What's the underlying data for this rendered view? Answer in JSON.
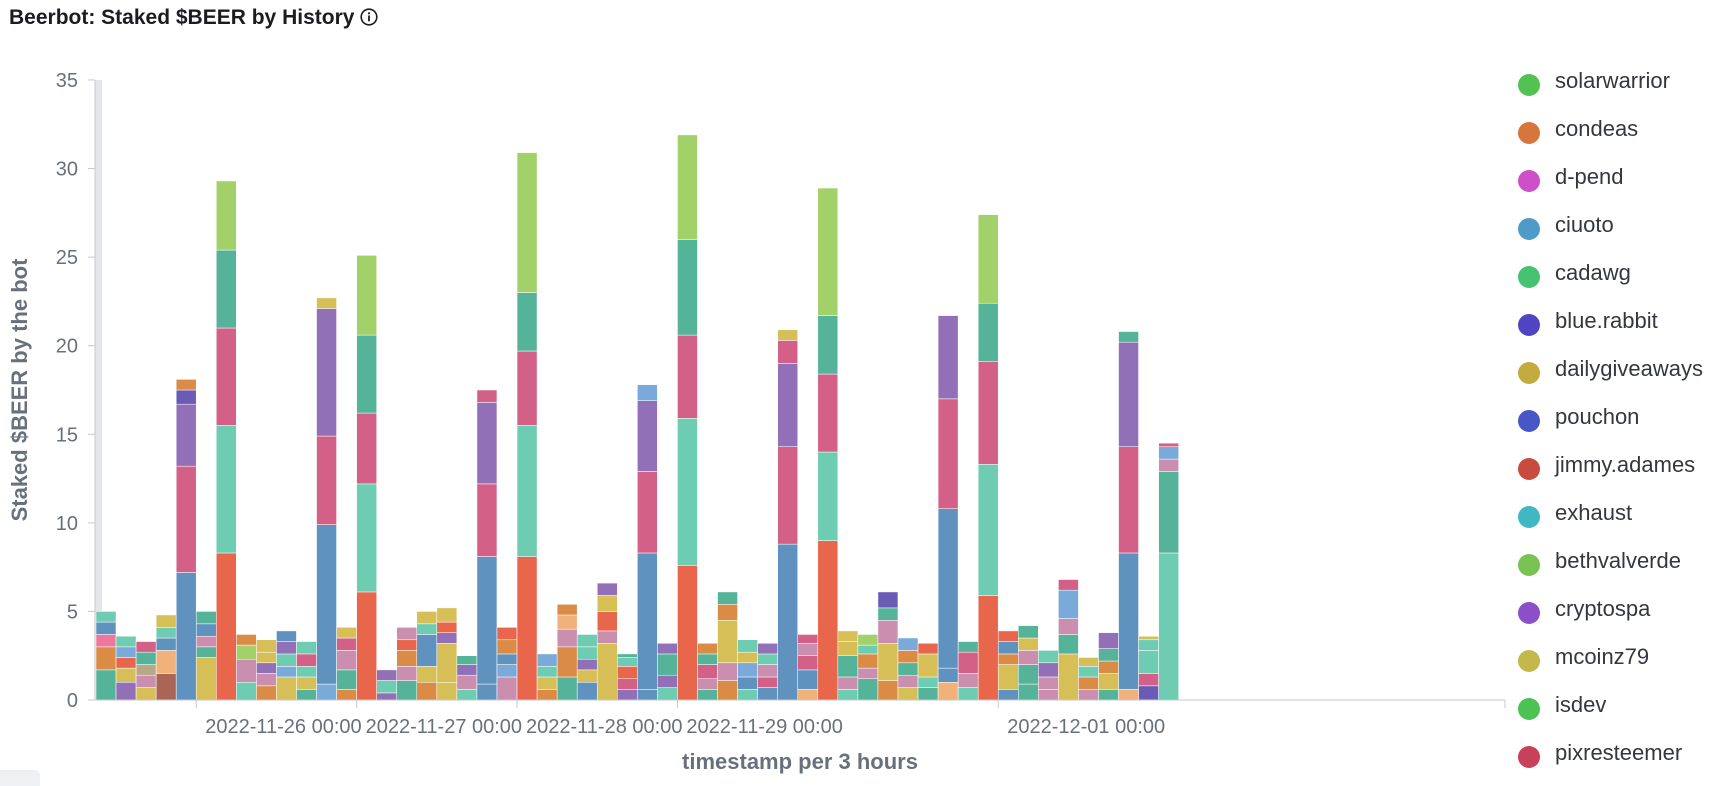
{
  "chart_data": {
    "type": "bar",
    "stacked": true,
    "title": "Beerbot: Staked $BEER by History",
    "xlabel": "timestamp per 3 hours",
    "ylabel": "Staked $BEER by the bot",
    "ylim": [
      0,
      35
    ],
    "yticks": [
      0,
      5,
      10,
      15,
      20,
      25,
      30,
      35
    ],
    "xticks": [
      {
        "label": "2022-11-26 00:00",
        "index": 5
      },
      {
        "label": "2022-11-27 00:00",
        "index": 13
      },
      {
        "label": "2022-11-28 00:00",
        "index": 21
      },
      {
        "label": "2022-11-29 00:00",
        "index": 29
      },
      {
        "label": "2022-12-01 00:00",
        "index": 45
      }
    ],
    "legend_position": "right",
    "series": [
      {
        "name": "solarwarrior",
        "color": "#54b399"
      },
      {
        "name": "condeas",
        "color": "#d6bf57"
      },
      {
        "name": "d-pend",
        "color": "#ca8eae"
      },
      {
        "name": "ciuoto",
        "color": "#6092c0"
      },
      {
        "name": "cadawg",
        "color": "#d36086"
      },
      {
        "name": "blue.rabbit",
        "color": "#9170b8"
      },
      {
        "name": "dailygiveaways",
        "color": "#da8b45"
      },
      {
        "name": "pouchon",
        "color": "#aa6556"
      },
      {
        "name": "jimmy.adames",
        "color": "#e7664c"
      },
      {
        "name": "exhaust",
        "color": "#b9a888"
      },
      {
        "name": "bethvalverde",
        "color": "#6dccb1"
      },
      {
        "name": "cryptospa",
        "color": "#79aad9"
      },
      {
        "name": "mcoinz79",
        "color": "#ee789d"
      },
      {
        "name": "isdev",
        "color": "#a987d1"
      },
      {
        "name": "pixresteemer",
        "color": "#e4a6c7"
      }
    ],
    "bars": [
      [
        {
          "v": 1.7,
          "c": "#54b399"
        },
        {
          "v": 1.3,
          "c": "#da8b45"
        },
        {
          "v": 0.7,
          "c": "#ee789d"
        },
        {
          "v": 0.7,
          "c": "#6092c0"
        },
        {
          "v": 0.6,
          "c": "#6dccb1"
        }
      ],
      [
        {
          "v": 1.0,
          "c": "#9170b8"
        },
        {
          "v": 0.8,
          "c": "#d6bf57"
        },
        {
          "v": 0.6,
          "c": "#e7664c"
        },
        {
          "v": 0.6,
          "c": "#79aad9"
        },
        {
          "v": 0.6,
          "c": "#6dccb1"
        }
      ],
      [
        {
          "v": 0.7,
          "c": "#d6bf57"
        },
        {
          "v": 0.7,
          "c": "#ca8eae"
        },
        {
          "v": 0.6,
          "c": "#b9a888"
        },
        {
          "v": 0.7,
          "c": "#54b399"
        },
        {
          "v": 0.6,
          "c": "#d36086"
        }
      ],
      [
        {
          "v": 1.5,
          "c": "#aa6556"
        },
        {
          "v": 1.3,
          "c": "#f0b27a"
        },
        {
          "v": 0.7,
          "c": "#6092c0"
        },
        {
          "v": 0.6,
          "c": "#6dccb1"
        },
        {
          "v": 0.7,
          "c": "#d6bf57"
        }
      ],
      [
        {
          "v": 7.2,
          "c": "#6092c0"
        },
        {
          "v": 6.0,
          "c": "#d36086"
        },
        {
          "v": 3.5,
          "c": "#9170b8"
        },
        {
          "v": 0.8,
          "c": "#6b5bb5"
        },
        {
          "v": 0.6,
          "c": "#da8b45"
        }
      ],
      [
        {
          "v": 2.4,
          "c": "#d6bf57"
        },
        {
          "v": 0.6,
          "c": "#54b399"
        },
        {
          "v": 0.6,
          "c": "#ca8eae"
        },
        {
          "v": 0.7,
          "c": "#6092c0"
        },
        {
          "v": 0.7,
          "c": "#54b399"
        }
      ],
      [
        {
          "v": 8.3,
          "c": "#e7664c"
        },
        {
          "v": 7.2,
          "c": "#6dccb1"
        },
        {
          "v": 5.5,
          "c": "#d36086"
        },
        {
          "v": 4.4,
          "c": "#54b399"
        },
        {
          "v": 3.9,
          "c": "#a2d16a"
        }
      ],
      [
        {
          "v": 1.0,
          "c": "#6dccb1"
        },
        {
          "v": 1.3,
          "c": "#ca8eae"
        },
        {
          "v": 0.8,
          "c": "#a2d16a"
        },
        {
          "v": 0.6,
          "c": "#da8b45"
        }
      ],
      [
        {
          "v": 0.8,
          "c": "#da8b45"
        },
        {
          "v": 0.7,
          "c": "#ca8eae"
        },
        {
          "v": 0.6,
          "c": "#9170b8"
        },
        {
          "v": 0.6,
          "c": "#d6bf57"
        },
        {
          "v": 0.7,
          "c": "#d6bf57"
        }
      ],
      [
        {
          "v": 1.3,
          "c": "#d6bf57"
        },
        {
          "v": 0.6,
          "c": "#79aad9"
        },
        {
          "v": 0.7,
          "c": "#6dccb1"
        },
        {
          "v": 0.7,
          "c": "#9170b8"
        },
        {
          "v": 0.6,
          "c": "#6092c0"
        }
      ],
      [
        {
          "v": 0.6,
          "c": "#54b399"
        },
        {
          "v": 0.7,
          "c": "#d6bf57"
        },
        {
          "v": 0.6,
          "c": "#6dccb1"
        },
        {
          "v": 0.7,
          "c": "#d36086"
        },
        {
          "v": 0.7,
          "c": "#6dccb1"
        }
      ],
      [
        {
          "v": 0.9,
          "c": "#79aad9"
        },
        {
          "v": 9.0,
          "c": "#6092c0"
        },
        {
          "v": 5.0,
          "c": "#d36086"
        },
        {
          "v": 7.2,
          "c": "#9170b8"
        },
        {
          "v": 0.6,
          "c": "#d6bf57"
        }
      ],
      [
        {
          "v": 0.6,
          "c": "#da8b45"
        },
        {
          "v": 1.1,
          "c": "#54b399"
        },
        {
          "v": 1.1,
          "c": "#ca8eae"
        },
        {
          "v": 0.7,
          "c": "#d36086"
        },
        {
          "v": 0.6,
          "c": "#d6bf57"
        }
      ],
      [
        {
          "v": 6.1,
          "c": "#e7664c"
        },
        {
          "v": 6.1,
          "c": "#6dccb1"
        },
        {
          "v": 4.0,
          "c": "#d36086"
        },
        {
          "v": 4.4,
          "c": "#54b399"
        },
        {
          "v": 4.5,
          "c": "#a2d16a"
        }
      ],
      [
        {
          "v": 0.4,
          "c": "#9170b8"
        },
        {
          "v": 0.7,
          "c": "#6dccb1"
        },
        {
          "v": 0.6,
          "c": "#9170b8"
        }
      ],
      [
        {
          "v": 1.1,
          "c": "#54b399"
        },
        {
          "v": 0.8,
          "c": "#ca8eae"
        },
        {
          "v": 0.9,
          "c": "#da8b45"
        },
        {
          "v": 0.6,
          "c": "#e7664c"
        },
        {
          "v": 0.7,
          "c": "#ca8eae"
        }
      ],
      [
        {
          "v": 1.0,
          "c": "#da8b45"
        },
        {
          "v": 0.9,
          "c": "#d6bf57"
        },
        {
          "v": 1.8,
          "c": "#6092c0"
        },
        {
          "v": 0.6,
          "c": "#6dccb1"
        },
        {
          "v": 0.7,
          "c": "#d6bf57"
        }
      ],
      [
        {
          "v": 1.0,
          "c": "#d6bf57"
        },
        {
          "v": 2.2,
          "c": "#d6bf57"
        },
        {
          "v": 0.6,
          "c": "#9170b8"
        },
        {
          "v": 0.6,
          "c": "#e7664c"
        },
        {
          "v": 0.8,
          "c": "#d6bf57"
        }
      ],
      [
        {
          "v": 0.6,
          "c": "#6dccb1"
        },
        {
          "v": 0.8,
          "c": "#ca8eae"
        },
        {
          "v": 0.6,
          "c": "#9170b8"
        },
        {
          "v": 0.5,
          "c": "#54b399"
        }
      ],
      [
        {
          "v": 0.9,
          "c": "#6092c0"
        },
        {
          "v": 7.2,
          "c": "#6092c0"
        },
        {
          "v": 4.1,
          "c": "#d36086"
        },
        {
          "v": 4.6,
          "c": "#9170b8"
        },
        {
          "v": 0.7,
          "c": "#d36086"
        }
      ],
      [
        {
          "v": 1.3,
          "c": "#ca8eae"
        },
        {
          "v": 0.7,
          "c": "#79aad9"
        },
        {
          "v": 0.6,
          "c": "#6092c0"
        },
        {
          "v": 0.8,
          "c": "#da8b45"
        },
        {
          "v": 0.7,
          "c": "#e7664c"
        }
      ],
      [
        {
          "v": 8.1,
          "c": "#e7664c"
        },
        {
          "v": 7.4,
          "c": "#6dccb1"
        },
        {
          "v": 4.2,
          "c": "#d36086"
        },
        {
          "v": 3.3,
          "c": "#54b399"
        },
        {
          "v": 7.9,
          "c": "#a2d16a"
        }
      ],
      [
        {
          "v": 0.6,
          "c": "#da8b45"
        },
        {
          "v": 0.7,
          "c": "#d6bf57"
        },
        {
          "v": 0.6,
          "c": "#6dccb1"
        },
        {
          "v": 0.7,
          "c": "#79aad9"
        }
      ],
      [
        {
          "v": 1.3,
          "c": "#54b399"
        },
        {
          "v": 1.7,
          "c": "#da8b45"
        },
        {
          "v": 1.0,
          "c": "#ca8eae"
        },
        {
          "v": 0.8,
          "c": "#f0b27a"
        },
        {
          "v": 0.6,
          "c": "#da8b45"
        }
      ],
      [
        {
          "v": 1.0,
          "c": "#6092c0"
        },
        {
          "v": 0.7,
          "c": "#d6bf57"
        },
        {
          "v": 0.6,
          "c": "#9170b8"
        },
        {
          "v": 0.7,
          "c": "#6dccb1"
        },
        {
          "v": 0.7,
          "c": "#6dccb1"
        }
      ],
      [
        {
          "v": 3.2,
          "c": "#d6bf57"
        },
        {
          "v": 0.7,
          "c": "#ca8eae"
        },
        {
          "v": 1.1,
          "c": "#e7664c"
        },
        {
          "v": 0.9,
          "c": "#d6bf57"
        },
        {
          "v": 0.7,
          "c": "#9170b8"
        }
      ],
      [
        {
          "v": 0.6,
          "c": "#9170b8"
        },
        {
          "v": 0.6,
          "c": "#d36086"
        },
        {
          "v": 0.7,
          "c": "#e7664c"
        },
        {
          "v": 0.5,
          "c": "#6dccb1"
        },
        {
          "v": 0.2,
          "c": "#54b399"
        }
      ],
      [
        {
          "v": 0.6,
          "c": "#6092c0"
        },
        {
          "v": 7.7,
          "c": "#6092c0"
        },
        {
          "v": 4.6,
          "c": "#d36086"
        },
        {
          "v": 4.0,
          "c": "#9170b8"
        },
        {
          "v": 0.9,
          "c": "#79aad9"
        }
      ],
      [
        {
          "v": 0.7,
          "c": "#6dccb1"
        },
        {
          "v": 0.7,
          "c": "#9170b8"
        },
        {
          "v": 1.2,
          "c": "#54b399"
        },
        {
          "v": 0.6,
          "c": "#9170b8"
        }
      ],
      [
        {
          "v": 7.6,
          "c": "#e7664c"
        },
        {
          "v": 8.3,
          "c": "#6dccb1"
        },
        {
          "v": 4.7,
          "c": "#d36086"
        },
        {
          "v": 5.4,
          "c": "#54b399"
        },
        {
          "v": 5.9,
          "c": "#a2d16a"
        }
      ],
      [
        {
          "v": 0.6,
          "c": "#54b399"
        },
        {
          "v": 0.6,
          "c": "#ca8eae"
        },
        {
          "v": 0.8,
          "c": "#d36086"
        },
        {
          "v": 0.6,
          "c": "#54b399"
        },
        {
          "v": 0.6,
          "c": "#da8b45"
        }
      ],
      [
        {
          "v": 1.1,
          "c": "#da8b45"
        },
        {
          "v": 1.0,
          "c": "#ca8eae"
        },
        {
          "v": 2.4,
          "c": "#d6bf57"
        },
        {
          "v": 0.9,
          "c": "#da8b45"
        },
        {
          "v": 0.7,
          "c": "#54b399"
        }
      ],
      [
        {
          "v": 0.6,
          "c": "#6dccb1"
        },
        {
          "v": 0.7,
          "c": "#6092c0"
        },
        {
          "v": 0.8,
          "c": "#79aad9"
        },
        {
          "v": 0.6,
          "c": "#d6bf57"
        },
        {
          "v": 0.7,
          "c": "#6dccb1"
        }
      ],
      [
        {
          "v": 0.7,
          "c": "#6092c0"
        },
        {
          "v": 0.6,
          "c": "#d36086"
        },
        {
          "v": 0.7,
          "c": "#ca8eae"
        },
        {
          "v": 0.6,
          "c": "#6dccb1"
        },
        {
          "v": 0.6,
          "c": "#9170b8"
        }
      ],
      [
        {
          "v": 8.8,
          "c": "#6092c0"
        },
        {
          "v": 5.5,
          "c": "#d36086"
        },
        {
          "v": 4.7,
          "c": "#9170b8"
        },
        {
          "v": 1.3,
          "c": "#d36086"
        },
        {
          "v": 0.6,
          "c": "#d6bf57"
        }
      ],
      [
        {
          "v": 0.6,
          "c": "#f0b27a"
        },
        {
          "v": 1.1,
          "c": "#6092c0"
        },
        {
          "v": 0.8,
          "c": "#d36086"
        },
        {
          "v": 0.7,
          "c": "#ca8eae"
        },
        {
          "v": 0.5,
          "c": "#d36086"
        }
      ],
      [
        {
          "v": 9.0,
          "c": "#e7664c"
        },
        {
          "v": 5.0,
          "c": "#6dccb1"
        },
        {
          "v": 4.4,
          "c": "#d36086"
        },
        {
          "v": 3.3,
          "c": "#54b399"
        },
        {
          "v": 7.2,
          "c": "#a2d16a"
        }
      ],
      [
        {
          "v": 0.6,
          "c": "#6dccb1"
        },
        {
          "v": 0.7,
          "c": "#ca8eae"
        },
        {
          "v": 1.2,
          "c": "#54b399"
        },
        {
          "v": 0.8,
          "c": "#d6bf57"
        },
        {
          "v": 0.6,
          "c": "#d6bf57"
        }
      ],
      [
        {
          "v": 1.2,
          "c": "#54b399"
        },
        {
          "v": 0.6,
          "c": "#ca8eae"
        },
        {
          "v": 0.8,
          "c": "#da8b45"
        },
        {
          "v": 0.5,
          "c": "#6dccb1"
        },
        {
          "v": 0.6,
          "c": "#a2d16a"
        }
      ],
      [
        {
          "v": 1.1,
          "c": "#da8b45"
        },
        {
          "v": 2.1,
          "c": "#d6bf57"
        },
        {
          "v": 1.3,
          "c": "#ca8eae"
        },
        {
          "v": 0.7,
          "c": "#54b399"
        },
        {
          "v": 0.9,
          "c": "#6b5bb5"
        }
      ],
      [
        {
          "v": 0.7,
          "c": "#d6bf57"
        },
        {
          "v": 0.7,
          "c": "#ca8eae"
        },
        {
          "v": 0.7,
          "c": "#54b399"
        },
        {
          "v": 0.7,
          "c": "#da8b45"
        },
        {
          "v": 0.7,
          "c": "#79aad9"
        }
      ],
      [
        {
          "v": 0.7,
          "c": "#54b399"
        },
        {
          "v": 0.6,
          "c": "#6dccb1"
        },
        {
          "v": 1.3,
          "c": "#d6bf57"
        },
        {
          "v": 0.6,
          "c": "#e7664c"
        }
      ],
      [
        {
          "v": 1.0,
          "c": "#f0b27a"
        },
        {
          "v": 0.8,
          "c": "#6092c0"
        },
        {
          "v": 9.0,
          "c": "#6092c0"
        },
        {
          "v": 6.2,
          "c": "#d36086"
        },
        {
          "v": 4.7,
          "c": "#9170b8"
        }
      ],
      [
        {
          "v": 0.7,
          "c": "#6dccb1"
        },
        {
          "v": 0.8,
          "c": "#ca8eae"
        },
        {
          "v": 1.2,
          "c": "#d36086"
        },
        {
          "v": 0.6,
          "c": "#54b399"
        }
      ],
      [
        {
          "v": 5.9,
          "c": "#e7664c"
        },
        {
          "v": 7.4,
          "c": "#6dccb1"
        },
        {
          "v": 5.8,
          "c": "#d36086"
        },
        {
          "v": 3.3,
          "c": "#54b399"
        },
        {
          "v": 5.0,
          "c": "#a2d16a"
        }
      ],
      [
        {
          "v": 0.6,
          "c": "#6092c0"
        },
        {
          "v": 1.4,
          "c": "#d6bf57"
        },
        {
          "v": 0.6,
          "c": "#da8b45"
        },
        {
          "v": 0.7,
          "c": "#6092c0"
        },
        {
          "v": 0.6,
          "c": "#e7664c"
        }
      ],
      [
        {
          "v": 0.9,
          "c": "#54b399"
        },
        {
          "v": 1.1,
          "c": "#54b399"
        },
        {
          "v": 0.8,
          "c": "#ca8eae"
        },
        {
          "v": 0.7,
          "c": "#d6bf57"
        },
        {
          "v": 0.7,
          "c": "#54b399"
        }
      ],
      [
        {
          "v": 0.6,
          "c": "#ca8eae"
        },
        {
          "v": 0.7,
          "c": "#ca8eae"
        },
        {
          "v": 0.8,
          "c": "#9170b8"
        },
        {
          "v": 0.7,
          "c": "#6dccb1"
        }
      ],
      [
        {
          "v": 2.6,
          "c": "#d6bf57"
        },
        {
          "v": 1.1,
          "c": "#54b399"
        },
        {
          "v": 0.9,
          "c": "#ca8eae"
        },
        {
          "v": 1.6,
          "c": "#79aad9"
        },
        {
          "v": 0.6,
          "c": "#d36086"
        }
      ],
      [
        {
          "v": 0.6,
          "c": "#ca8eae"
        },
        {
          "v": 0.7,
          "c": "#da8b45"
        },
        {
          "v": 0.6,
          "c": "#6dccb1"
        },
        {
          "v": 0.5,
          "c": "#d6bf57"
        }
      ],
      [
        {
          "v": 0.6,
          "c": "#54b399"
        },
        {
          "v": 0.9,
          "c": "#d6bf57"
        },
        {
          "v": 0.7,
          "c": "#da8b45"
        },
        {
          "v": 0.7,
          "c": "#54b399"
        },
        {
          "v": 0.9,
          "c": "#9170b8"
        }
      ],
      [
        {
          "v": 0.6,
          "c": "#f0b27a"
        },
        {
          "v": 7.7,
          "c": "#6092c0"
        },
        {
          "v": 6.0,
          "c": "#d36086"
        },
        {
          "v": 5.9,
          "c": "#9170b8"
        },
        {
          "v": 0.6,
          "c": "#54b399"
        }
      ],
      [
        {
          "v": 0.8,
          "c": "#6b5bb5"
        },
        {
          "v": 0.7,
          "c": "#d36086"
        },
        {
          "v": 1.3,
          "c": "#6dccb1"
        },
        {
          "v": 0.6,
          "c": "#6dccb1"
        },
        {
          "v": 0.2,
          "c": "#d6bf57"
        }
      ],
      [
        {
          "v": 8.3,
          "c": "#6dccb1"
        },
        {
          "v": 4.6,
          "c": "#54b399"
        },
        {
          "v": 0.7,
          "c": "#ca8eae"
        },
        {
          "v": 0.7,
          "c": "#79aad9"
        },
        {
          "v": 0.2,
          "c": "#d36086"
        }
      ]
    ]
  }
}
